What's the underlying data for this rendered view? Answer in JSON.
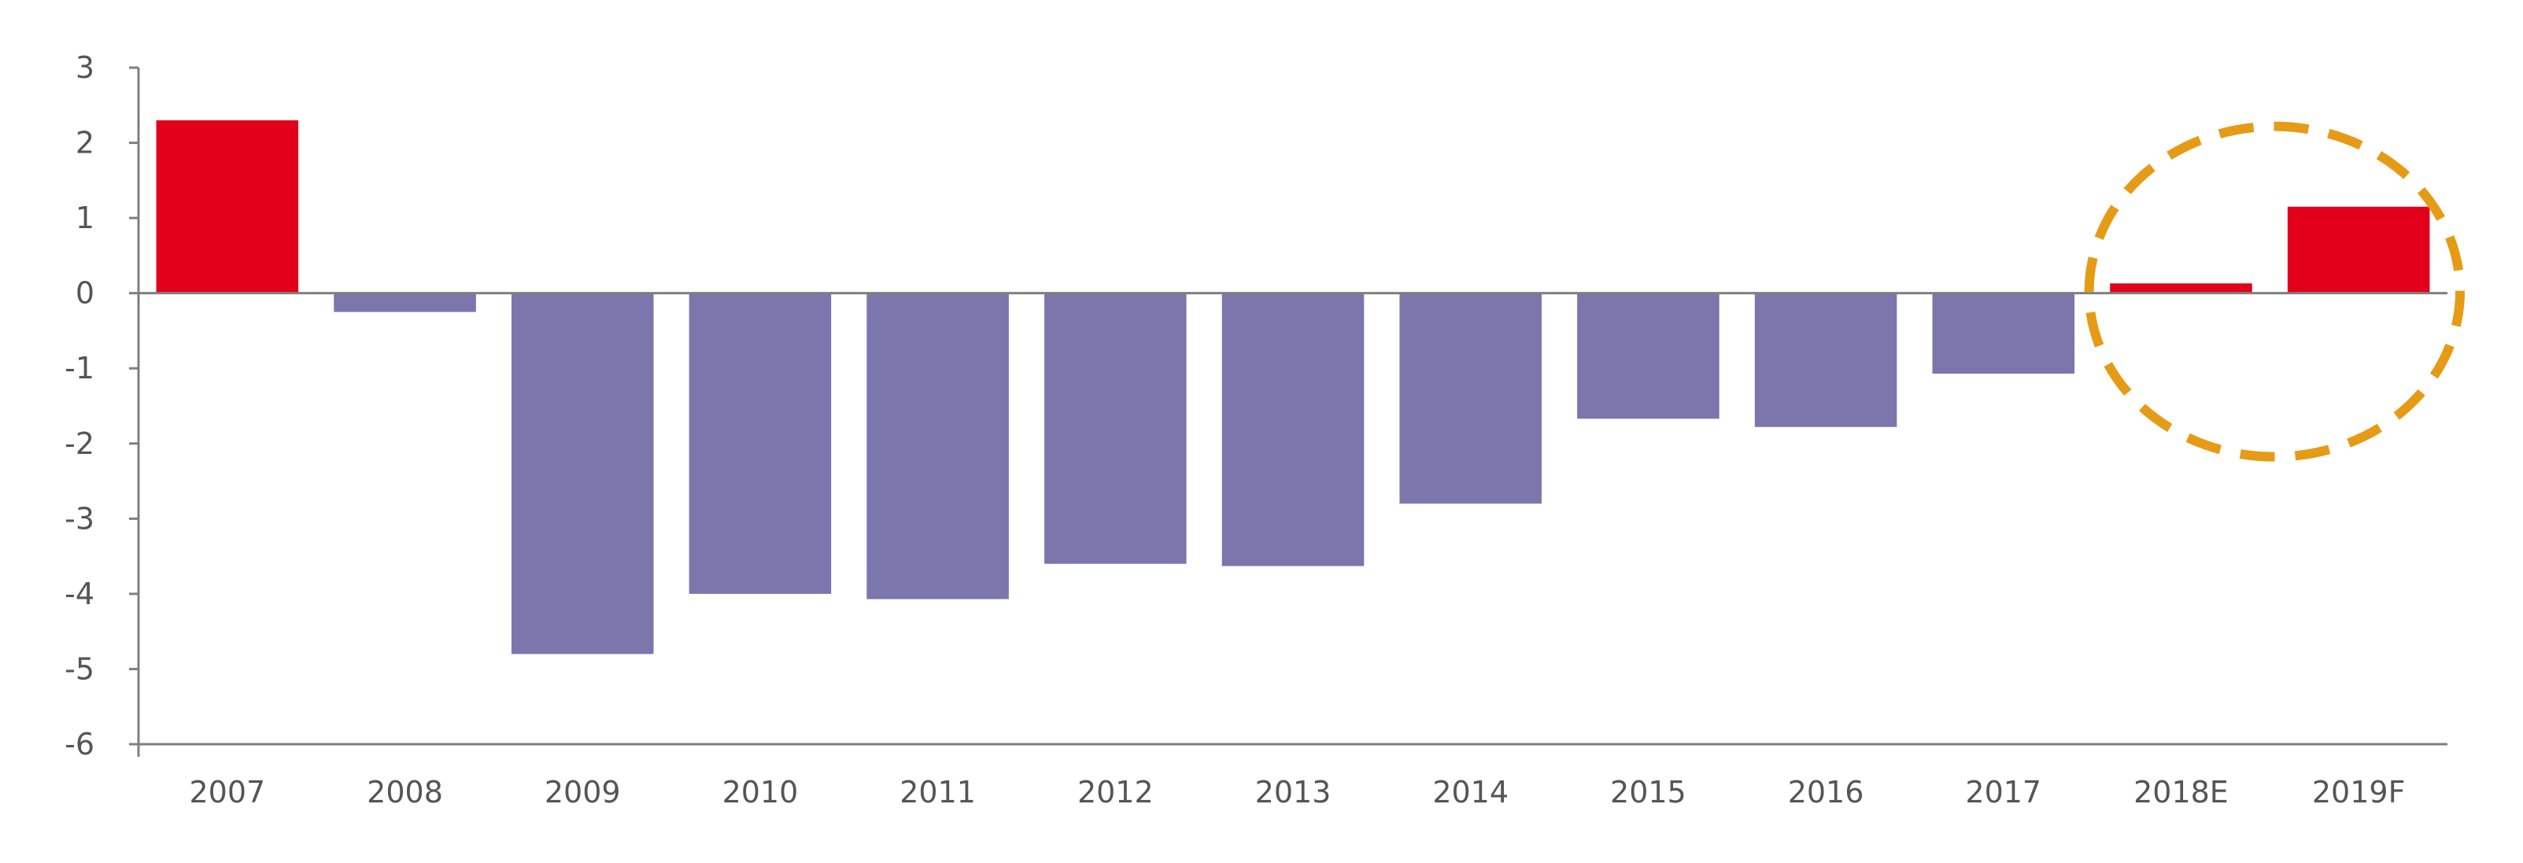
{
  "chart_data": {
    "type": "bar",
    "categories": [
      "2007",
      "2008",
      "2009",
      "2010",
      "2011",
      "2012",
      "2013",
      "2014",
      "2015",
      "2016",
      "2017",
      "2018E",
      "2019F"
    ],
    "values": [
      2.3,
      -0.25,
      -4.8,
      -4.0,
      -4.07,
      -3.6,
      -3.63,
      -2.8,
      -1.67,
      -1.78,
      -1.07,
      0.13,
      1.15
    ],
    "title": "",
    "xlabel": "",
    "ylabel": "",
    "ylim": [
      -6,
      3
    ],
    "yticks": [
      3,
      2,
      1,
      0,
      -1,
      -2,
      -3,
      -4,
      -5,
      -6
    ],
    "grid": false,
    "legend": "none",
    "colors": {
      "positive": "#e2001a",
      "negative": "#7b76ab",
      "axis": "#7f7f7f",
      "highlight_circle": "#e69b16"
    },
    "highlighted_categories": [
      "2018E",
      "2019F"
    ]
  }
}
